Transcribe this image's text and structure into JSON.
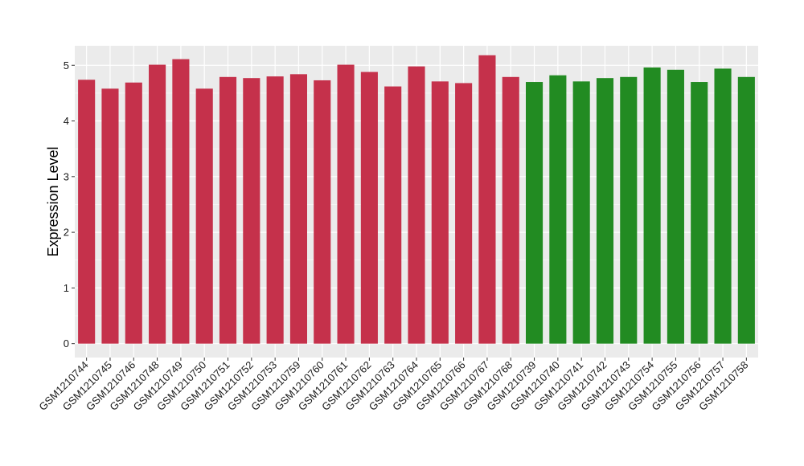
{
  "chart_data": {
    "type": "bar",
    "title": "",
    "xlabel": "",
    "ylabel": "Expression Level",
    "ylim": [
      -0.25,
      5.35
    ],
    "yticks": [
      0,
      1,
      2,
      3,
      4,
      5
    ],
    "grid": true,
    "legend": "none",
    "colors": {
      "group1": "#c5314b",
      "group2": "#228b22",
      "panel": "#ebebeb",
      "gridline": "#ffffff"
    },
    "categories": [
      "GSM1210744",
      "GSM1210745",
      "GSM1210746",
      "GSM1210748",
      "GSM1210749",
      "GSM1210750",
      "GSM1210751",
      "GSM1210752",
      "GSM1210753",
      "GSM1210759",
      "GSM1210760",
      "GSM1210761",
      "GSM1210762",
      "GSM1210763",
      "GSM1210764",
      "GSM1210765",
      "GSM1210766",
      "GSM1210767",
      "GSM1210768",
      "GSM1210739",
      "GSM1210740",
      "GSM1210741",
      "GSM1210742",
      "GSM1210743",
      "GSM1210754",
      "GSM1210755",
      "GSM1210756",
      "GSM1210757",
      "GSM1210758"
    ],
    "values": [
      4.74,
      4.58,
      4.69,
      5.01,
      5.11,
      4.58,
      4.79,
      4.77,
      4.8,
      4.84,
      4.73,
      5.01,
      4.88,
      4.62,
      4.98,
      4.71,
      4.68,
      5.18,
      4.79,
      4.7,
      4.82,
      4.71,
      4.77,
      4.79,
      4.96,
      4.92,
      4.7,
      4.94,
      4.79
    ],
    "groups": [
      "group1",
      "group1",
      "group1",
      "group1",
      "group1",
      "group1",
      "group1",
      "group1",
      "group1",
      "group1",
      "group1",
      "group1",
      "group1",
      "group1",
      "group1",
      "group1",
      "group1",
      "group1",
      "group1",
      "group2",
      "group2",
      "group2",
      "group2",
      "group2",
      "group2",
      "group2",
      "group2",
      "group2",
      "group2"
    ]
  }
}
